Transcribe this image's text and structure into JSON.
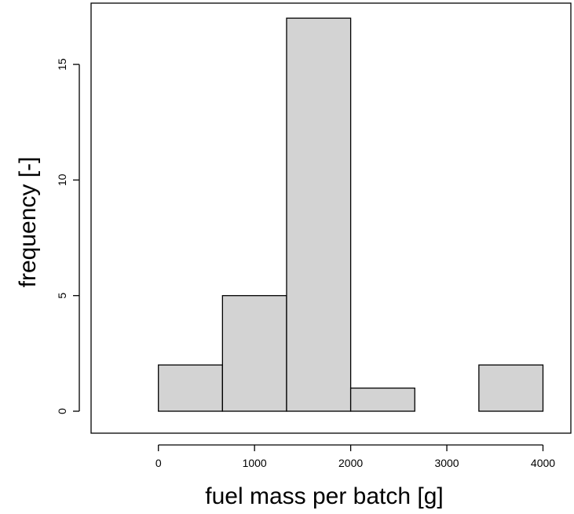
{
  "chart_data": {
    "type": "bar",
    "subtype": "histogram",
    "xlabel": "fuel mass per batch [g]",
    "ylabel": "frequency [-]",
    "bins": [
      {
        "start": 0,
        "end": 666.67,
        "count": 2
      },
      {
        "start": 666.67,
        "end": 1333.33,
        "count": 5
      },
      {
        "start": 1333.33,
        "end": 2000,
        "count": 17
      },
      {
        "start": 2000,
        "end": 2666.67,
        "count": 1
      },
      {
        "start": 2666.67,
        "end": 3333.33,
        "count": 0
      },
      {
        "start": 3333.33,
        "end": 4000,
        "count": 2
      }
    ],
    "xlim": [
      -700,
      4290
    ],
    "ylim": [
      -0.95,
      17.65
    ],
    "x_ticks": [
      0,
      1000,
      2000,
      3000,
      4000
    ],
    "x_tick_labels": [
      "0",
      "1000",
      "2000",
      "3000",
      "4000"
    ],
    "y_ticks": [
      0,
      5,
      10,
      15
    ],
    "y_tick_labels": [
      "0",
      "5",
      "10",
      "15"
    ],
    "bar_fill": "#d3d3d3",
    "bar_stroke": "#000000",
    "grid": false,
    "legend": "none"
  }
}
